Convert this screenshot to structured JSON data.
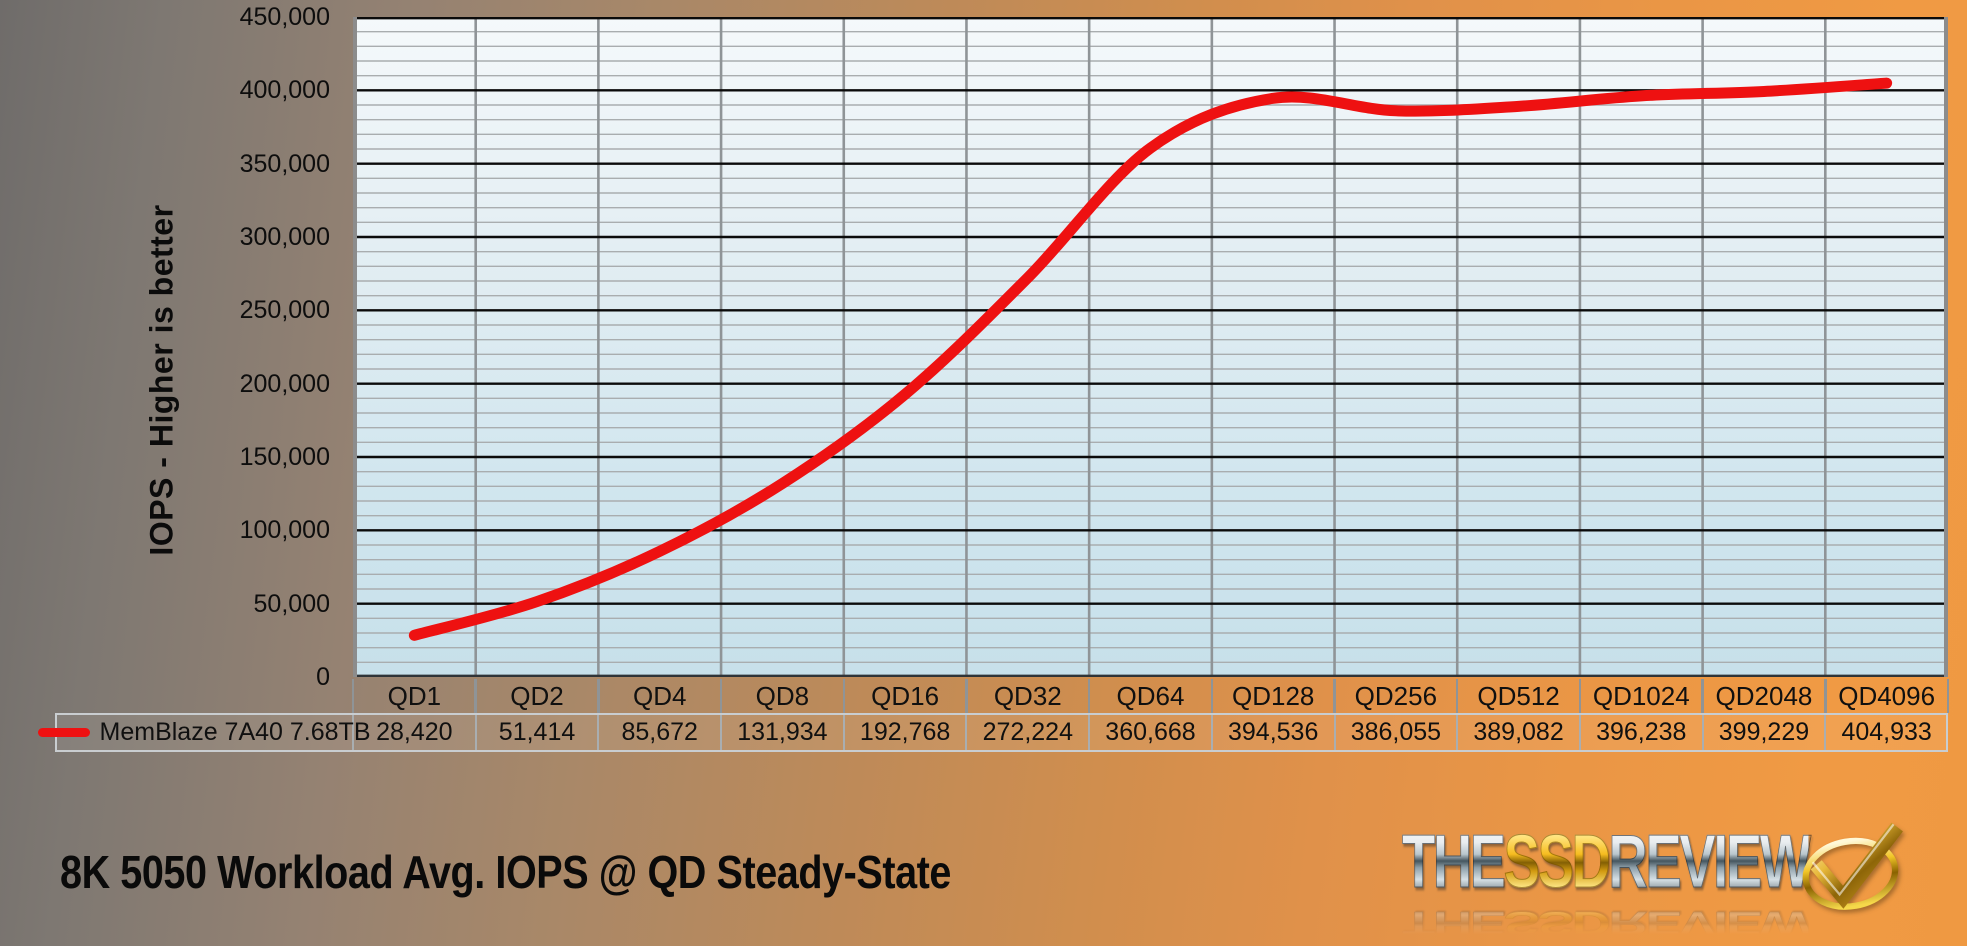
{
  "chart_data": {
    "type": "line",
    "title": "8K 5050 Workload Avg. IOPS @ QD Steady-State",
    "xlabel": "",
    "ylabel": "IOPS - Higher is better",
    "categories": [
      "QD1",
      "QD2",
      "QD4",
      "QD8",
      "QD16",
      "QD32",
      "QD64",
      "QD128",
      "QD256",
      "QD512",
      "QD1024",
      "QD2048",
      "QD4096"
    ],
    "series": [
      {
        "name": "MemBlaze 7A40 7.68TB",
        "color": "#ee1111",
        "values": [
          28420,
          51414,
          85672,
          131934,
          192768,
          272224,
          360668,
          394536,
          386055,
          389082,
          396238,
          399229,
          404933
        ],
        "values_formatted": [
          "28,420",
          "51,414",
          "85,672",
          "131,934",
          "192,768",
          "272,224",
          "360,668",
          "394,536",
          "386,055",
          "389,082",
          "396,238",
          "399,229",
          "404,933"
        ]
      }
    ],
    "ylim": [
      0,
      450000
    ],
    "y_tick_step": 50000,
    "y_minor_step": 10000,
    "y_ticks": [
      "0",
      "50,000",
      "100,000",
      "150,000",
      "200,000",
      "250,000",
      "300,000",
      "350,000",
      "400,000",
      "450,000"
    ],
    "grid": true,
    "legend_position": "bottom-table-row"
  },
  "logo": {
    "the": "THE",
    "ssd": "SSD",
    "review": "REVIEW",
    "check_icon": "gold-check-icon"
  },
  "colors": {
    "background_left": "#6f6c6a",
    "background_right": "#f09a44",
    "plot_bg_top": "#f5f9fb",
    "plot_bg_bottom": "#c7e0ea",
    "line": "#ee1111",
    "major_gridline": "#0b0b0b",
    "minor_gridline": "#a9adaf",
    "column_gridline": "#8f9497",
    "table_border": "#c9cdd0"
  }
}
